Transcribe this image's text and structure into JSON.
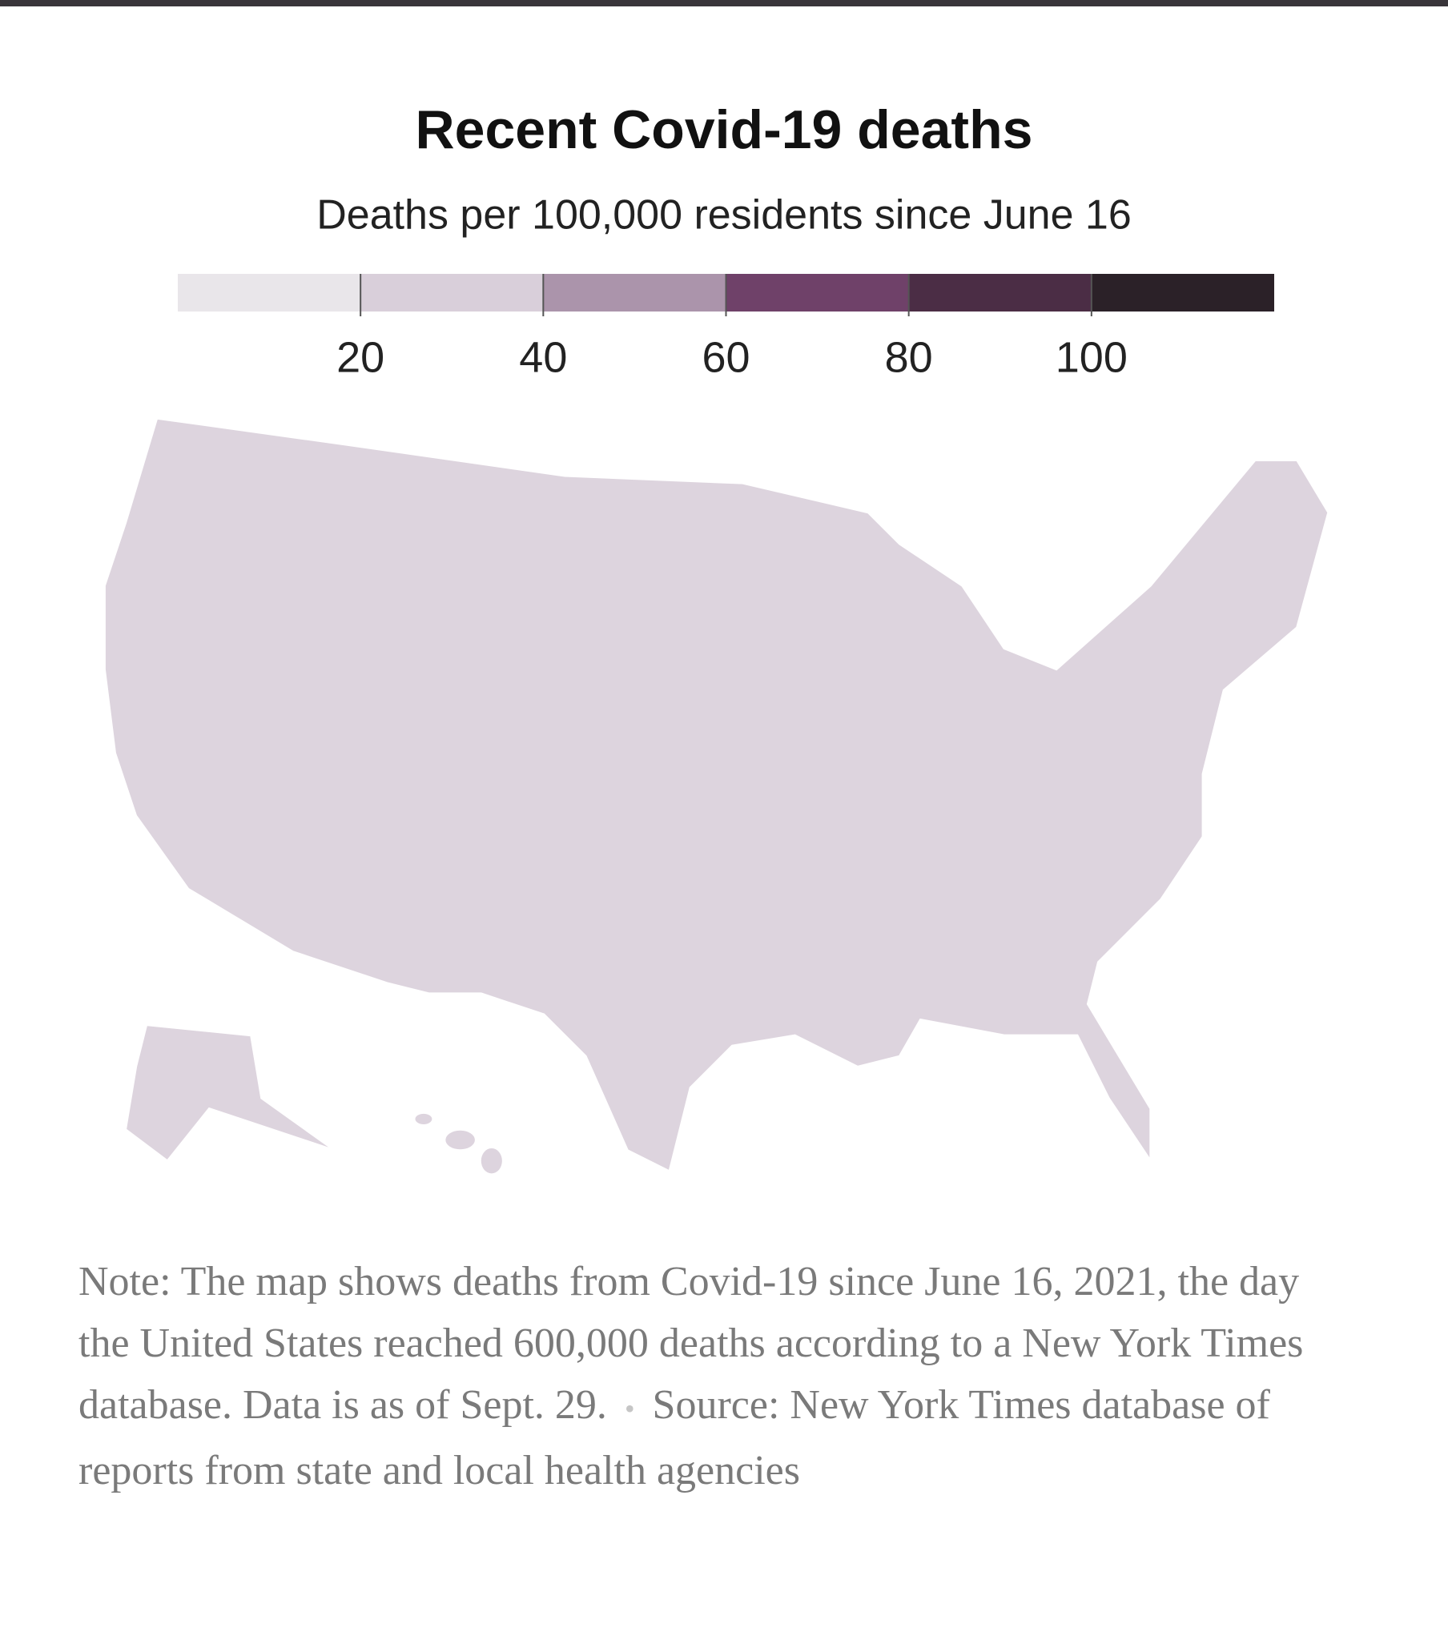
{
  "chart_data": {
    "type": "choropleth-map",
    "title": "Recent Covid-19 deaths",
    "subtitle": "Deaths per 100,000 residents since June 16",
    "legend": {
      "xlim": [
        0,
        120
      ],
      "xticks": [
        20,
        40,
        60,
        80,
        100
      ],
      "colors": [
        "#e9e6ea",
        "#d9cfda",
        "#ab94ab",
        "#6f4169",
        "#4b2d45",
        "#2b2128"
      ]
    },
    "note": "Note: The map shows deaths from Covid-19 since June 16, 2021, the day the United States reached 600,000 deaths according to a New York Times database. Data is as of Sept. 29.",
    "source": "Source: New York Times database of reports from state and local health agencies"
  }
}
